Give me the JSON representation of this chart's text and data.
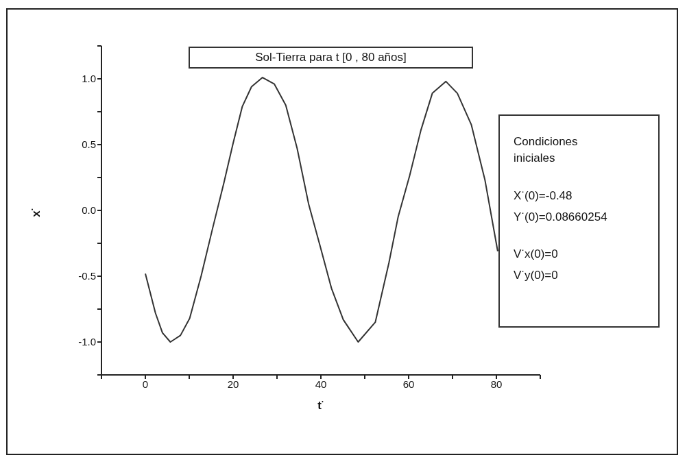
{
  "chart_data": {
    "type": "line",
    "title": "Sol-Tierra para t [0 , 80 años]",
    "xlabel": "t$^{·}$",
    "ylabel": "x$^{·}$",
    "xlim": [
      -10,
      90
    ],
    "ylim": [
      -1.25,
      1.25
    ],
    "xticks": [
      {
        "value": -10,
        "label": null
      },
      0,
      {
        "value": 10,
        "label": null
      },
      20,
      {
        "value": 30,
        "label": null
      },
      40,
      {
        "value": 50,
        "label": null
      },
      60,
      {
        "value": 70,
        "label": null
      },
      80,
      {
        "value": 90,
        "label": null
      }
    ],
    "yticks": [
      {
        "value": -1.25,
        "label": null
      },
      {
        "value": -1.0,
        "label": "-1.0"
      },
      {
        "value": -0.75,
        "label": null
      },
      -0.5,
      {
        "value": -0.25,
        "label": null
      },
      {
        "value": 0.0,
        "label": "0.0"
      },
      {
        "value": 0.25,
        "label": null
      },
      0.5,
      {
        "value": 0.75,
        "label": null
      },
      {
        "value": 1.0,
        "label": "1.0"
      },
      {
        "value": 1.25,
        "label": null
      }
    ],
    "grid": false,
    "marker": "none",
    "line_style": "solid",
    "annotations": [
      "Condiciones iniciales",
      "X$^{·}$(0)=-0.48",
      "Y$^{·}$(0)=0.08660254",
      "V$^{·}$x(0)=0",
      "V$^{·}$y(0)=0"
    ],
    "series": [
      {
        "color": "#333333",
        "x": [
          0,
          2.3,
          3.9,
          5.7,
          8.0,
          10.1,
          12.7,
          15.3,
          17.9,
          20,
          22.1,
          24.2,
          26.7,
          29.4,
          32.0,
          34.6,
          37.2,
          39.9,
          42.4,
          45.1,
          48.5,
          52.4,
          55.5,
          57.6,
          60.2,
          62.8,
          65.4,
          68.5,
          71.1,
          74.3,
          77.4,
          80.3
        ],
        "values": [
          -0.48,
          -0.78,
          -0.93,
          -1.0,
          -0.95,
          -0.82,
          -0.5,
          -0.14,
          0.21,
          0.51,
          0.79,
          0.94,
          1.01,
          0.96,
          0.8,
          0.47,
          0.05,
          -0.28,
          -0.59,
          -0.83,
          -1.0,
          -0.85,
          -0.4,
          -0.05,
          0.26,
          0.61,
          0.89,
          0.98,
          0.89,
          0.65,
          0.23,
          -0.31
        ]
      }
    ]
  }
}
